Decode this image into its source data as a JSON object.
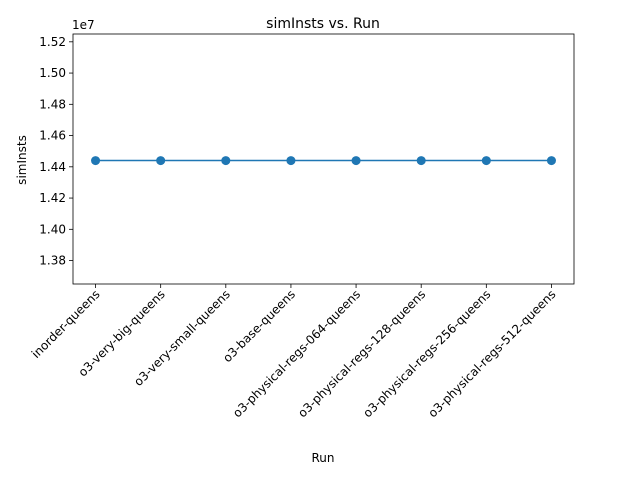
{
  "chart_data": {
    "type": "line",
    "title": "simInsts vs. Run",
    "xlabel": "Run",
    "ylabel": "simInsts",
    "offset_label": "1e7",
    "categories": [
      "inorder-queens",
      "o3-very-big-queens",
      "o3-very-small-queens",
      "o3-base-queens",
      "o3-physical-regs-064-queens",
      "o3-physical-regs-128-queens",
      "o3-physical-regs-256-queens",
      "o3-physical-regs-512-queens"
    ],
    "series": [
      {
        "values": [
          14440000,
          14440000,
          14440000,
          14440000,
          14440000,
          14440000,
          14440000,
          14440000
        ],
        "color": "#1f77b4",
        "marker": "circle"
      }
    ],
    "ylim": [
      13650000,
      15250000
    ],
    "yticks": [
      13800000,
      14000000,
      14200000,
      14400000,
      14600000,
      14800000,
      15000000,
      15200000
    ],
    "ytick_labels": [
      "1.38",
      "1.40",
      "1.42",
      "1.44",
      "1.46",
      "1.48",
      "1.50",
      "1.52"
    ],
    "grid": false,
    "legend": "none"
  }
}
